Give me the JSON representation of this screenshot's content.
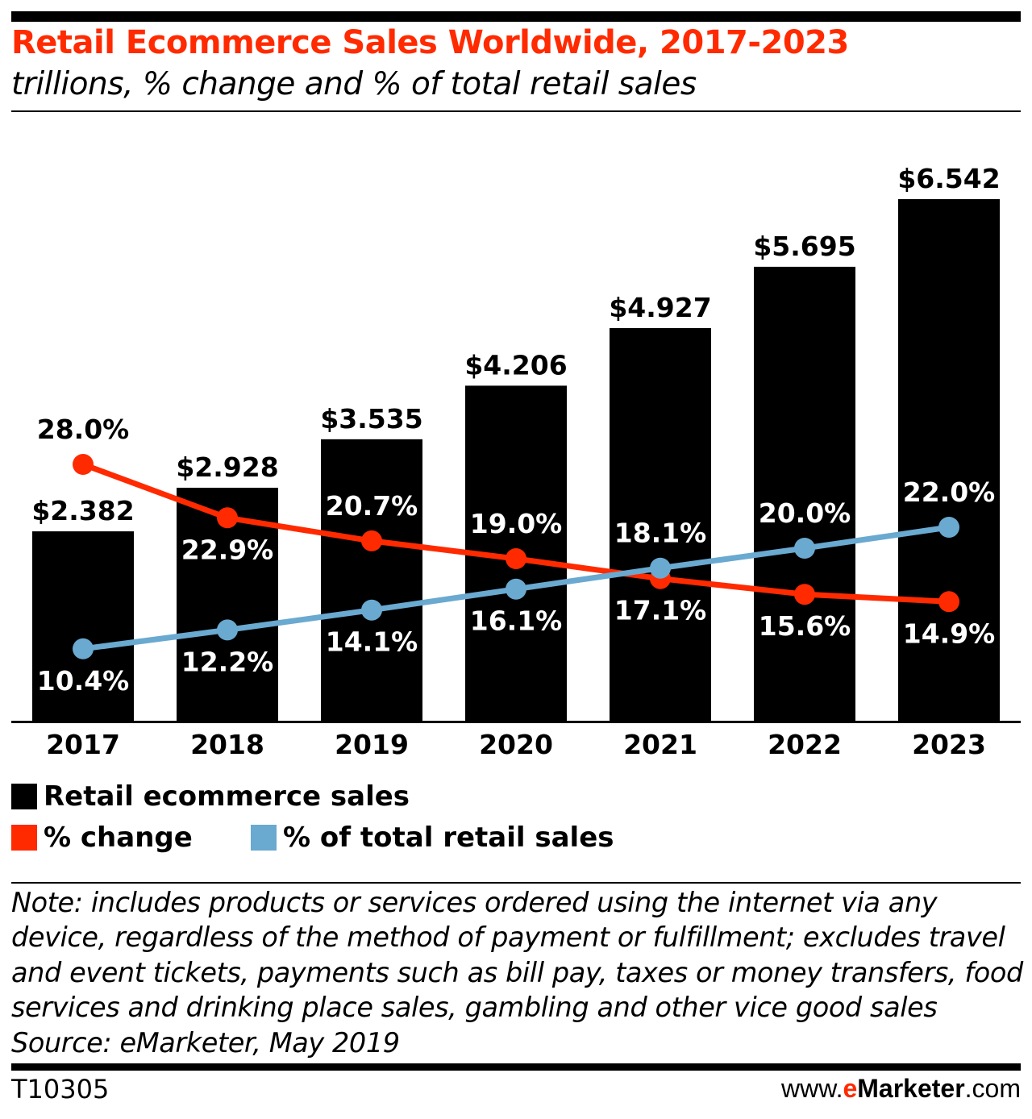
{
  "title": "Retail Ecommerce Sales Worldwide, 2017-2023",
  "subtitle": "trillions, % change and % of total retail sales",
  "chart_data": {
    "type": "bar",
    "categories": [
      "2017",
      "2018",
      "2019",
      "2020",
      "2021",
      "2022",
      "2023"
    ],
    "series": [
      {
        "name": "Retail ecommerce sales",
        "type": "bar",
        "color": "#000000",
        "values": [
          2.382,
          2.928,
          3.535,
          4.206,
          4.927,
          5.695,
          6.542
        ],
        "labels": [
          "$2.382",
          "$2.928",
          "$3.535",
          "$4.206",
          "$4.927",
          "$5.695",
          "$6.542"
        ]
      },
      {
        "name": "% change",
        "type": "line",
        "color": "#ff2a00",
        "values": [
          28.0,
          22.9,
          20.7,
          19.0,
          17.1,
          15.6,
          14.9
        ],
        "labels": [
          "28.0%",
          "22.9%",
          "20.7%",
          "19.0%",
          "17.1%",
          "15.6%",
          "14.9%"
        ]
      },
      {
        "name": "% of total retail sales",
        "type": "line",
        "color": "#6aa9d0",
        "values": [
          10.4,
          12.2,
          14.1,
          16.1,
          18.1,
          20.0,
          22.0
        ],
        "labels": [
          "10.4%",
          "12.2%",
          "14.1%",
          "16.1%",
          "18.1%",
          "20.0%",
          "22.0%"
        ]
      }
    ],
    "units": "trillions",
    "grid": false,
    "legend_position": "bottom-left"
  },
  "legend": {
    "bar": "Retail ecommerce sales",
    "change": "% change",
    "share": "% of total retail sales"
  },
  "note": "Note: includes products or services ordered using the internet via any device, regardless of the method of payment or fulfillment; excludes travel and event tickets, payments such as bill pay, taxes or money transfers, food services and drinking place sales, gambling and other vice good sales",
  "source": "Source: eMarketer, May 2019",
  "chart_code": "T10305",
  "logo": {
    "pre": "www.",
    "e": "e",
    "brand": "Marketer",
    "post": ".com"
  }
}
